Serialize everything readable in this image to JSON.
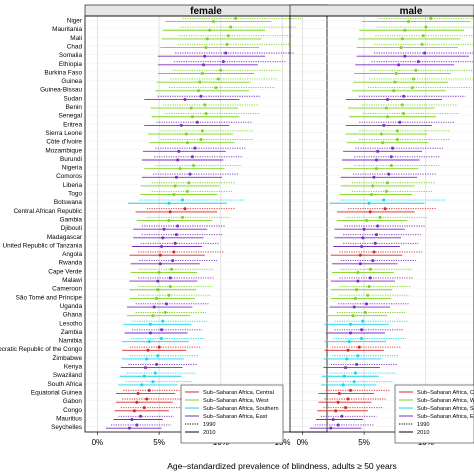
{
  "chart_data": {
    "type": "scatter",
    "panels": [
      {
        "title": "female",
        "xlim": [
          -1,
          18.6
        ]
      },
      {
        "title": "male",
        "xlim": [
          -1,
          18.6
        ]
      }
    ],
    "xlabel": "Age–standardized prevalence of blindness, adults ≥ 50 years",
    "xticks": [
      0,
      5,
      10,
      15
    ],
    "xtick_labels": [
      "0%",
      "5%",
      "10%",
      "15%"
    ],
    "grid": true,
    "legend_position": "bottom-right",
    "legend": {
      "regions": [
        {
          "key": "central",
          "label": "Sub–Saharan Africa, Central",
          "color": "#d62728"
        },
        {
          "key": "west",
          "label": "Sub–Saharan Africa, West",
          "color": "#7ed321"
        },
        {
          "key": "southern",
          "label": "Sub–Saharan Africa, Southern",
          "color": "#17d4e6"
        },
        {
          "key": "east",
          "label": "Sub–Saharan Africa, East",
          "color": "#7b2fbe"
        }
      ],
      "years": [
        {
          "label": "1990",
          "line": "dotted"
        },
        {
          "label": "2010",
          "line": "solid"
        }
      ]
    },
    "categories": [
      "Niger",
      "Mauritania",
      "Mali",
      "Chad",
      "Somalia",
      "Ethiopia",
      "Burkina Faso",
      "Guinea",
      "Guinea-Bissau",
      "Sudan",
      "Benin",
      "Senegal",
      "Eritrea",
      "Sierra Leone",
      "Côte d'Ivoire",
      "Mozambique",
      "Burundi",
      "Nigeria",
      "Comoros",
      "Liberia",
      "Togo",
      "Botswana",
      "Central African Republic",
      "Gambia",
      "Djibouti",
      "Madagascar",
      "United Republic of Tanzania",
      "Angola",
      "Rwanda",
      "Cape Verde",
      "Malawi",
      "Cameroon",
      "São Tomé and Príncipe",
      "Uganda",
      "Ghana",
      "Lesotho",
      "Zambia",
      "Namibia",
      "Democratic Republic of the Congo",
      "Zimbabwe",
      "Kenya",
      "Swaziland",
      "South Africa",
      "Equatorial Guinea",
      "Gabon",
      "Congo",
      "Mauritius",
      "Seychelles"
    ],
    "category_labels": [
      "Niger",
      "Mauritania",
      "Mali",
      "Chad",
      "Somalia",
      "Ethiopia",
      "Burkina Faso",
      "Guinea",
      "Guinea-Bissau",
      "Sudan",
      "Benin",
      "Senegal",
      "Eritrea",
      "Sierra Leone",
      "Côte d'Ivoire",
      "Mozambique",
      "Burundi",
      "Nigeria",
      "Comoros",
      "Liberia",
      "Togo",
      "Botswana",
      "Central African Republic",
      "Gambia",
      "Djibouti",
      "Madagascar",
      "United Republic of Tanzania",
      "Angola",
      "Rwanda",
      "Cape Verde",
      "Malawi",
      "Cameroon",
      "São Tomé and Príncipe",
      "Uganda",
      "Ghana",
      "Lesotho",
      "Zambia",
      "Namibia",
      "ocratic Republic of the Congo",
      "Zimbabwe",
      "Kenya",
      "Swaziland",
      "South Africa",
      "Equatorial Guinea",
      "Gabon",
      "Congo",
      "Mauritius",
      "Seychelles"
    ],
    "region": [
      "west",
      "west",
      "west",
      "west",
      "east",
      "east",
      "west",
      "west",
      "west",
      "east",
      "west",
      "west",
      "east",
      "west",
      "west",
      "east",
      "east",
      "west",
      "east",
      "west",
      "west",
      "southern",
      "central",
      "west",
      "east",
      "east",
      "east",
      "central",
      "east",
      "west",
      "east",
      "west",
      "west",
      "east",
      "west",
      "southern",
      "east",
      "southern",
      "central",
      "southern",
      "east",
      "southern",
      "southern",
      "central",
      "central",
      "central",
      "east",
      "east"
    ],
    "series": [
      {
        "panel": "female",
        "year": "2010",
        "values": [
          9.4,
          9.1,
          8.9,
          8.8,
          8.7,
          8.6,
          8.5,
          8.3,
          8.2,
          7.1,
          7.6,
          7.7,
          6.8,
          7.2,
          7.3,
          6.6,
          6.5,
          6.7,
          6.4,
          6.3,
          6.2,
          5.8,
          5.9,
          5.8,
          5.4,
          5.3,
          5.2,
          5.1,
          5.1,
          5.0,
          4.9,
          4.9,
          4.8,
          4.6,
          4.5,
          4.3,
          4.3,
          4.2,
          4.1,
          4.0,
          3.9,
          3.8,
          3.6,
          3.3,
          3.2,
          3.0,
          2.8,
          2.6
        ],
        "lower": [
          5.5,
          5.3,
          5.2,
          5.1,
          4.9,
          4.9,
          4.9,
          4.8,
          4.7,
          3.8,
          4.3,
          4.4,
          3.8,
          4.1,
          4.2,
          3.7,
          3.6,
          3.8,
          3.6,
          3.5,
          3.5,
          2.5,
          3.1,
          3.2,
          2.9,
          2.9,
          2.8,
          2.6,
          2.7,
          2.7,
          2.6,
          2.6,
          2.6,
          2.4,
          2.4,
          2.1,
          2.2,
          2.0,
          2.0,
          2.0,
          1.9,
          1.8,
          1.7,
          1.5,
          1.5,
          1.4,
          1.3,
          0.7
        ],
        "upper": [
          14.1,
          13.6,
          13.3,
          13.1,
          13.6,
          13.0,
          12.7,
          12.4,
          12.3,
          11.5,
          11.4,
          11.5,
          10.7,
          11.0,
          11.1,
          10.4,
          10.2,
          10.3,
          10.1,
          9.9,
          9.7,
          10.5,
          9.7,
          9.3,
          8.9,
          8.6,
          8.5,
          8.7,
          8.3,
          8.1,
          8.1,
          8.0,
          7.9,
          7.7,
          7.5,
          7.6,
          7.3,
          7.4,
          7.2,
          7.0,
          6.9,
          6.8,
          6.5,
          6.3,
          6.1,
          5.8,
          5.3,
          5.2
        ]
      },
      {
        "panel": "female",
        "year": "1990",
        "values": [
          11.2,
          10.8,
          10.6,
          10.5,
          10.4,
          10.2,
          10.0,
          9.8,
          9.6,
          8.4,
          8.7,
          8.8,
          8.1,
          8.5,
          8.4,
          7.9,
          7.7,
          7.8,
          7.5,
          7.4,
          7.3,
          6.9,
          7.1,
          6.9,
          6.5,
          6.4,
          6.3,
          6.2,
          6.1,
          6.0,
          5.9,
          5.9,
          5.8,
          5.6,
          5.5,
          5.3,
          5.2,
          5.2,
          5.0,
          4.9,
          4.8,
          4.7,
          4.5,
          4.2,
          4.0,
          3.8,
          3.5,
          3.2
        ],
        "lower": [
          6.9,
          6.7,
          6.6,
          6.5,
          6.3,
          6.2,
          6.1,
          5.9,
          5.8,
          4.9,
          5.3,
          5.4,
          4.8,
          5.1,
          5.1,
          4.7,
          4.6,
          4.7,
          4.5,
          4.4,
          4.4,
          3.4,
          4.0,
          4.0,
          3.6,
          3.6,
          3.5,
          3.3,
          3.4,
          3.4,
          3.3,
          3.3,
          3.3,
          3.1,
          3.1,
          2.8,
          2.8,
          2.7,
          2.6,
          2.6,
          2.5,
          2.4,
          2.3,
          2.1,
          2.0,
          1.9,
          1.7,
          1.1
        ],
        "upper": [
          16.6,
          16.1,
          15.8,
          15.6,
          15.9,
          15.3,
          14.9,
          14.6,
          14.4,
          13.2,
          13.0,
          13.1,
          12.5,
          12.7,
          12.6,
          12.0,
          11.8,
          11.7,
          11.4,
          11.2,
          11.0,
          11.9,
          11.2,
          10.8,
          10.4,
          10.1,
          9.9,
          10.2,
          9.7,
          9.4,
          9.4,
          9.3,
          9.2,
          9.0,
          8.8,
          8.9,
          8.5,
          8.7,
          8.4,
          8.2,
          8.1,
          8.0,
          7.7,
          7.4,
          7.1,
          6.8,
          6.2,
          6.0
        ]
      },
      {
        "panel": "male",
        "year": "2010",
        "values": [
          8.6,
          8.3,
          8.1,
          8.0,
          8.3,
          7.8,
          7.6,
          7.5,
          7.4,
          6.9,
          6.8,
          6.9,
          6.6,
          6.4,
          6.5,
          6.1,
          6.0,
          6.0,
          5.8,
          5.7,
          5.6,
          5.4,
          5.5,
          5.2,
          5.0,
          4.9,
          4.8,
          4.7,
          4.7,
          4.5,
          4.5,
          4.4,
          4.3,
          4.2,
          4.1,
          3.9,
          3.9,
          3.8,
          3.7,
          3.6,
          3.5,
          3.4,
          3.3,
          3.0,
          2.9,
          2.7,
          2.5,
          2.3
        ],
        "lower": [
          4.8,
          4.6,
          4.5,
          4.4,
          4.4,
          4.3,
          4.2,
          4.1,
          4.0,
          3.5,
          3.7,
          3.8,
          3.5,
          3.5,
          3.6,
          3.3,
          3.2,
          3.3,
          3.1,
          3.1,
          3.0,
          2.2,
          2.8,
          2.8,
          2.6,
          2.6,
          2.5,
          2.3,
          2.4,
          2.4,
          2.3,
          2.3,
          2.3,
          2.2,
          2.1,
          1.8,
          1.9,
          1.8,
          1.8,
          1.7,
          1.7,
          1.6,
          1.5,
          1.3,
          1.3,
          1.2,
          1.1,
          0.6
        ],
        "upper": [
          13.6,
          13.1,
          12.8,
          12.6,
          13.5,
          12.3,
          12.0,
          11.8,
          11.6,
          11.3,
          10.7,
          10.8,
          10.5,
          10.1,
          10.2,
          9.7,
          9.5,
          9.4,
          9.3,
          9.1,
          8.9,
          9.9,
          9.1,
          8.5,
          8.3,
          8.0,
          7.9,
          8.1,
          7.7,
          7.4,
          7.5,
          7.3,
          7.2,
          7.1,
          6.9,
          7.0,
          6.7,
          6.8,
          6.6,
          6.4,
          6.3,
          6.2,
          6.0,
          5.8,
          5.6,
          5.3,
          4.9,
          4.8
        ]
      },
      {
        "panel": "male",
        "year": "1990",
        "values": [
          10.4,
          10.0,
          9.8,
          9.7,
          9.9,
          9.4,
          9.2,
          9.0,
          8.9,
          8.2,
          8.1,
          8.2,
          7.9,
          7.7,
          7.7,
          7.3,
          7.2,
          7.2,
          7.0,
          6.9,
          6.8,
          6.6,
          6.7,
          6.3,
          6.1,
          6.0,
          5.9,
          5.8,
          5.7,
          5.5,
          5.5,
          5.4,
          5.3,
          5.2,
          5.1,
          4.9,
          4.8,
          4.8,
          4.6,
          4.5,
          4.4,
          4.3,
          4.2,
          3.9,
          3.7,
          3.5,
          3.2,
          2.9
        ],
        "lower": [
          6.2,
          6.0,
          5.9,
          5.8,
          5.8,
          5.6,
          5.5,
          5.4,
          5.3,
          4.6,
          4.8,
          4.9,
          4.6,
          4.6,
          4.6,
          4.3,
          4.2,
          4.2,
          4.1,
          4.0,
          4.0,
          3.1,
          3.7,
          3.6,
          3.4,
          3.3,
          3.3,
          3.0,
          3.1,
          3.1,
          3.0,
          3.0,
          3.0,
          2.9,
          2.8,
          2.6,
          2.6,
          2.5,
          2.4,
          2.4,
          2.3,
          2.2,
          2.1,
          1.9,
          1.8,
          1.7,
          1.5,
          1.0
        ],
        "upper": [
          15.8,
          15.3,
          15.0,
          14.8,
          15.6,
          14.4,
          14.1,
          13.8,
          13.7,
          13.2,
          12.6,
          12.7,
          12.3,
          12.0,
          12.0,
          11.4,
          11.2,
          11.1,
          10.9,
          10.7,
          10.5,
          11.6,
          10.8,
          10.1,
          9.9,
          9.6,
          9.4,
          9.7,
          9.2,
          8.9,
          9.0,
          8.8,
          8.7,
          8.6,
          8.4,
          8.6,
          8.2,
          8.4,
          8.0,
          7.8,
          7.7,
          7.6,
          7.4,
          7.1,
          6.8,
          6.5,
          6.0,
          5.8
        ]
      }
    ]
  }
}
